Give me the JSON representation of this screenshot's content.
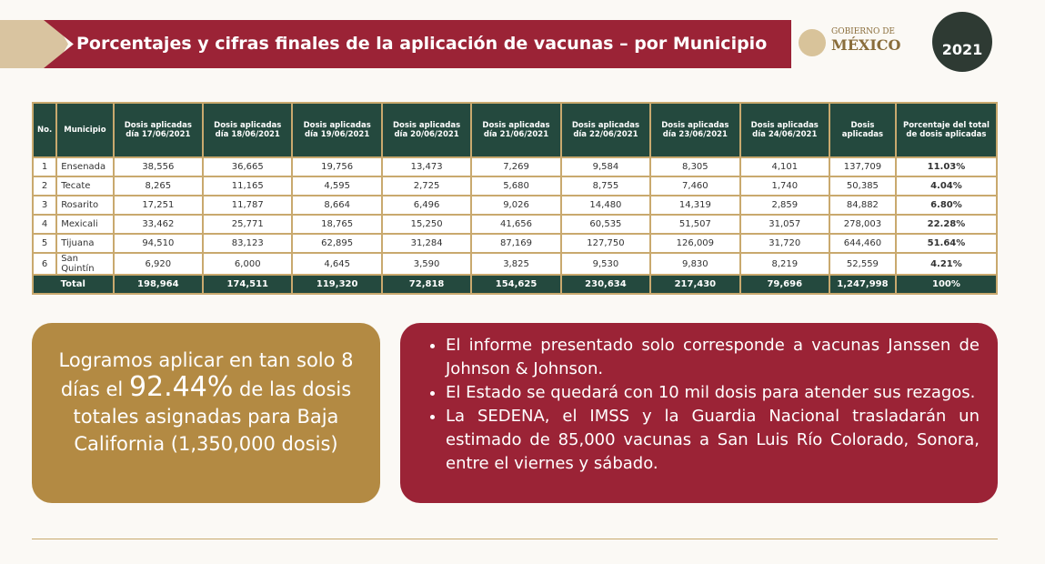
{
  "header": {
    "title": "Porcentajes y cifras finales de la aplicación de vacunas – por Municipio",
    "logo_gob_1": "GOBIERNO DE",
    "logo_gob_2": "MÉXICO",
    "logo_year": "2021"
  },
  "table": {
    "headers": [
      "No.",
      "Municipio",
      "Dosis aplicadas día 17/06/2021",
      "Dosis aplicadas día 18/06/2021",
      "Dosis aplicadas día 19/06/2021",
      "Dosis aplicadas día 20/06/2021",
      "Dosis aplicadas día 21/06/2021",
      "Dosis aplicadas día 22/06/2021",
      "Dosis aplicadas día 23/06/2021",
      "Dosis aplicadas día 24/06/2021",
      "Dosis aplicadas",
      "Porcentaje del total de dosis aplicadas"
    ],
    "rows": [
      [
        "1",
        "Ensenada",
        "38,556",
        "36,665",
        "19,756",
        "13,473",
        "7,269",
        "9,584",
        "8,305",
        "4,101",
        "137,709",
        "11.03%"
      ],
      [
        "2",
        "Tecate",
        "8,265",
        "11,165",
        "4,595",
        "2,725",
        "5,680",
        "8,755",
        "7,460",
        "1,740",
        "50,385",
        "4.04%"
      ],
      [
        "3",
        "Rosarito",
        "17,251",
        "11,787",
        "8,664",
        "6,496",
        "9,026",
        "14,480",
        "14,319",
        "2,859",
        "84,882",
        "6.80%"
      ],
      [
        "4",
        "Mexicali",
        "33,462",
        "25,771",
        "18,765",
        "15,250",
        "41,656",
        "60,535",
        "51,507",
        "31,057",
        "278,003",
        "22.28%"
      ],
      [
        "5",
        "Tijuana",
        "94,510",
        "83,123",
        "62,895",
        "31,284",
        "87,169",
        "127,750",
        "126,009",
        "31,720",
        "644,460",
        "51.64%"
      ],
      [
        "6",
        "San Quintín",
        "6,920",
        "6,000",
        "4,645",
        "3,590",
        "3,825",
        "9,530",
        "9,830",
        "8,219",
        "52,559",
        "4.21%"
      ]
    ],
    "total": [
      "Total",
      "198,964",
      "174,511",
      "119,320",
      "72,818",
      "154,625",
      "230,634",
      "217,430",
      "79,696",
      "1,247,998",
      "100%"
    ]
  },
  "summary": {
    "before": "Logramos aplicar en tan solo 8 días el",
    "highlight": "92.44%",
    "after": "de las dosis totales asignadas para Baja California (1,350,000 dosis)"
  },
  "bullets": [
    "El informe presentado solo corresponde a vacunas Janssen de Johnson & Johnson.",
    "El Estado se quedará con 10 mil dosis para atender sus rezagos.",
    "La SEDENA, el IMSS y la Guardia Nacional trasladarán un estimado de 85,000 vacunas a San Luis Río Colorado, Sonora, entre el viernes y sábado."
  ]
}
